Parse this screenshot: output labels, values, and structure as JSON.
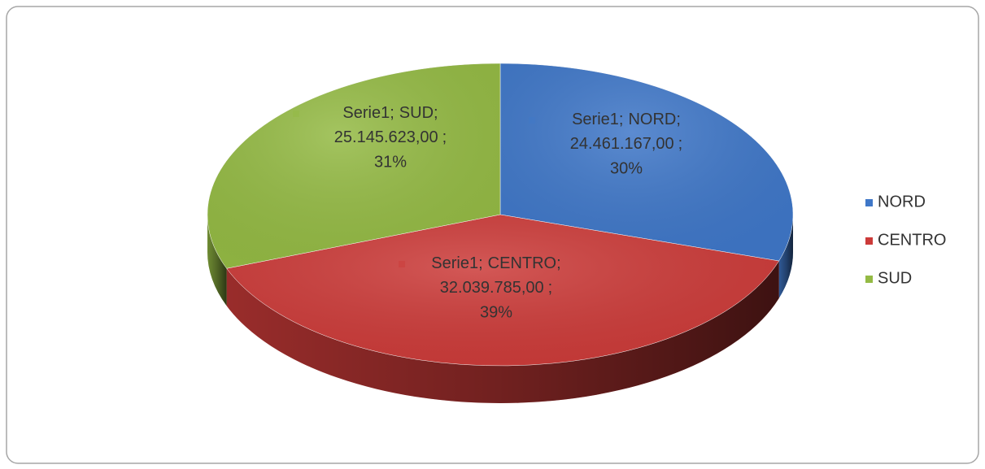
{
  "chart_data": {
    "type": "pie3d",
    "series": [
      {
        "name": "Serie1",
        "values": [
          24461167,
          32039785,
          25145623
        ],
        "value_labels": [
          "24.461.167,00",
          "32.039.785,00",
          "25.145.623,00"
        ],
        "percent_labels": [
          "30%",
          "39%",
          "31%"
        ]
      }
    ],
    "categories": [
      "NORD",
      "CENTRO",
      "SUD"
    ],
    "colors": [
      "#3f77c8",
      "#cc3b39",
      "#94ba44"
    ],
    "label_separator": ";",
    "legend": "right"
  }
}
